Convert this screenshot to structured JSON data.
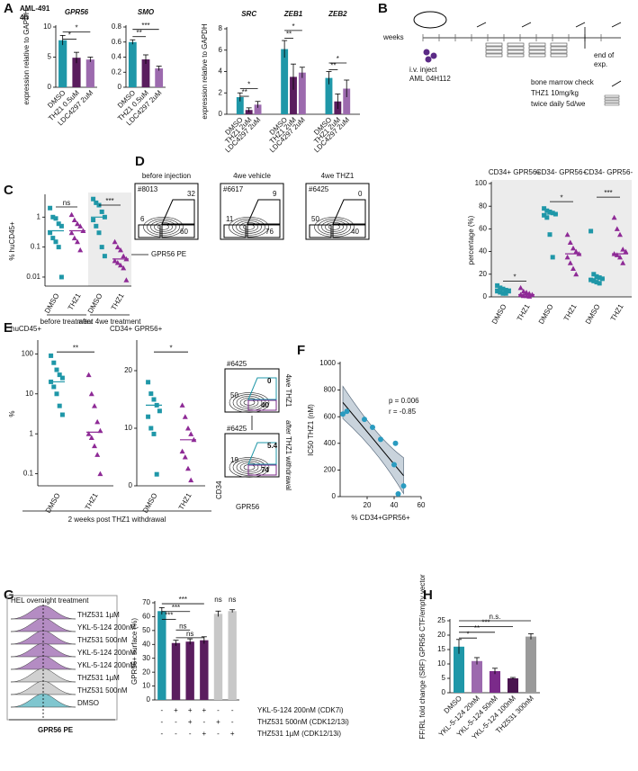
{
  "panel_labels": [
    "A",
    "B",
    "C",
    "D",
    "E",
    "F",
    "G",
    "H"
  ],
  "panel_a_subtitle": [
    "AML-491",
    "4h"
  ],
  "schema": {
    "weeks_label": "weeks",
    "inject": [
      "i.v. inject",
      "AML 04H112"
    ],
    "end": [
      "end of",
      "exp."
    ],
    "legend": [
      "bone marrow check",
      "THZ1 10mg/kg",
      "twice daily 5d/we"
    ]
  },
  "flow_plots_d": {
    "y_axis": "CD34 APC",
    "x_axis": "GPR56 PE",
    "plots": [
      {
        "title": "before injection",
        "id": "#8013",
        "gates": [
          "32",
          "6",
          "60"
        ]
      },
      {
        "title": "4we vehicle",
        "id": "#6617",
        "gates": [
          "9",
          "11",
          "76"
        ]
      },
      {
        "title": "4we THZ1",
        "id": "#6425",
        "gates": [
          "0",
          "50",
          "40"
        ]
      }
    ]
  },
  "flow_plots_e": {
    "y_axis": "CD34",
    "x_axis": "GPR56",
    "plots": [
      {
        "id": "#6425",
        "gates": [
          "0",
          "50",
          "40"
        ],
        "side": "4we THZ1"
      },
      {
        "id": "#6425",
        "gates": [
          "5.4",
          "19",
          "74"
        ],
        "side": "after THZ1 withdrawal"
      }
    ]
  },
  "e_footer": "2 weeks post THZ1 withdrawal",
  "histogram_g": {
    "title": "HEL overnight treatment",
    "x_axis": "GPR56 PE",
    "rows": [
      "THZ531 1µM",
      "YKL-5-124 200nM",
      "THZ531 500nM",
      "YKL-5-124 200nM",
      "YKL-5-124 200nM",
      "THZ531 1µM",
      "THZ531 500nM",
      "DMSO"
    ]
  },
  "chart_data": [
    {
      "type": "bar",
      "title": "GPR56",
      "y_label": "expression relative to GAPDH",
      "categories": [
        "DMSO",
        "THZ1 0.5uM",
        "LDC4297 2uM"
      ],
      "values": [
        7.8,
        4.9,
        4.6
      ],
      "errors": [
        0.8,
        0.9,
        0.4
      ],
      "colors": [
        "#1f97a8",
        "#5a1d5e",
        "#9c6aae"
      ],
      "ylim": [
        0,
        10
      ],
      "yticks": [
        0,
        5,
        10
      ],
      "annotations": [
        "*",
        "*"
      ]
    },
    {
      "type": "bar",
      "title": "SMO",
      "categories": [
        "DMSO",
        "THZ1 0.5uM",
        "LDC4297 2uM"
      ],
      "values": [
        0.6,
        0.37,
        0.25
      ],
      "errors": [
        0.03,
        0.06,
        0.03
      ],
      "colors": [
        "#1f97a8",
        "#5a1d5e",
        "#9c6aae"
      ],
      "ylim": [
        0,
        0.8
      ],
      "yticks": [
        0,
        0.2,
        0.4,
        0.6,
        0.8
      ],
      "annotations": [
        "**",
        "***"
      ]
    },
    {
      "type": "grouped_bar",
      "y_label": "expression relative to GAPDH",
      "categories": [
        "SRC",
        "ZEB1",
        "ZEB2"
      ],
      "series": [
        {
          "name": "DMSO",
          "color": "#1f97a8",
          "values": [
            1.6,
            6.1,
            3.4
          ],
          "errors": [
            0.4,
            0.8,
            0.6
          ]
        },
        {
          "name": "THZ1 2uM",
          "color": "#5a1d5e",
          "values": [
            0.4,
            3.5,
            1.2
          ],
          "errors": [
            0.2,
            1.2,
            0.7
          ]
        },
        {
          "name": "LDC4297 2uM",
          "color": "#9c6aae",
          "values": [
            0.9,
            3.9,
            2.4
          ],
          "errors": [
            0.3,
            0.5,
            0.8
          ]
        }
      ],
      "ylim": [
        0,
        8
      ],
      "yticks": [
        0,
        2,
        4,
        6,
        8
      ],
      "annotations": [
        "*",
        "**",
        "*",
        "**",
        "*",
        "**"
      ]
    },
    {
      "type": "dot",
      "y_label": "% huCD45+",
      "log": true,
      "categories": [
        "DMSO",
        "THZ1",
        "DMSO",
        "THZ1"
      ],
      "groups": [
        "before treatment",
        "after 4we treatment"
      ],
      "points": [
        [
          2,
          1,
          0.9,
          0.6,
          0.5,
          0.3,
          0.2,
          0.15,
          0.1,
          0.01
        ],
        [
          1.2,
          0.8,
          0.6,
          0.5,
          0.35,
          0.3,
          0.2,
          0.15,
          0.08
        ],
        [
          4,
          3,
          2.5,
          1.5,
          1,
          0.8,
          0.5,
          0.3,
          0.1,
          0.05
        ],
        [
          0.15,
          0.1,
          0.08,
          0.05,
          0.04,
          0.035,
          0.03,
          0.025,
          0.02,
          0.008
        ]
      ],
      "medians": [
        0.35,
        0.35,
        1,
        0.04
      ],
      "colors": [
        "#1f97a8",
        "#8e2a96",
        "#1f97a8",
        "#8e2a96"
      ],
      "markers": [
        "square",
        "triangle",
        "square",
        "triangle"
      ],
      "ylim": [
        0.005,
        5
      ],
      "yticks": [
        0.01,
        0.1,
        1
      ],
      "annotations": [
        "ns",
        "***"
      ]
    },
    {
      "type": "dot",
      "y_label": "percentage (%)",
      "categories": [
        "DMSO",
        "THZ1",
        "DMSO",
        "THZ1",
        "DMSO",
        "THZ1"
      ],
      "groups": [
        "CD34+ GPR56+",
        "CD34- GPR56+",
        "CD34- GPR56-"
      ],
      "points": [
        [
          10,
          8,
          7,
          6,
          5,
          5,
          4,
          3,
          3
        ],
        [
          8,
          5,
          4,
          3,
          2,
          2,
          1,
          1,
          0.5
        ],
        [
          78,
          76,
          75,
          74,
          73,
          72,
          70,
          55,
          35
        ],
        [
          55,
          48,
          43,
          40,
          38,
          35,
          30,
          25,
          20
        ],
        [
          58,
          20,
          18,
          17,
          16,
          15,
          14,
          13,
          12
        ],
        [
          70,
          60,
          55,
          42,
          40,
          38,
          37,
          35,
          30
        ]
      ],
      "medians": [
        7,
        2,
        73,
        38,
        16,
        38
      ],
      "colors": [
        "#1f97a8",
        "#8e2a96",
        "#1f97a8",
        "#8e2a96",
        "#1f97a8",
        "#8e2a96"
      ],
      "markers": [
        "square",
        "triangle",
        "square",
        "triangle",
        "square",
        "triangle"
      ],
      "ylim": [
        0,
        100
      ],
      "yticks": [
        0,
        20,
        40,
        60,
        80,
        100
      ],
      "annotations": [
        "*",
        "*",
        "***"
      ]
    },
    {
      "type": "dot",
      "title": "huCD45+",
      "y_label": "%",
      "log": true,
      "categories": [
        "DMSO",
        "THZ1"
      ],
      "points": [
        [
          90,
          60,
          40,
          30,
          25,
          20,
          15,
          10,
          5,
          3
        ],
        [
          30,
          10,
          5,
          2,
          1.2,
          1,
          0.8,
          0.5,
          0.3,
          0.1
        ]
      ],
      "medians": [
        20,
        1.1
      ],
      "colors": [
        "#1f97a8",
        "#8e2a96"
      ],
      "markers": [
        "square",
        "triangle"
      ],
      "ylim": [
        0.05,
        200
      ],
      "yticks": [
        0.1,
        1,
        10,
        100
      ],
      "annotations": [
        "**"
      ]
    },
    {
      "type": "dot",
      "title": "CD34+ GPR56+",
      "categories": [
        "DMSO",
        "THZ1"
      ],
      "points": [
        [
          18,
          16,
          15,
          14,
          13,
          12,
          10,
          9,
          2
        ],
        [
          14,
          12,
          10,
          9,
          8,
          6,
          5,
          3,
          1
        ]
      ],
      "medians": [
        14,
        8
      ],
      "colors": [
        "#1f97a8",
        "#8e2a96"
      ],
      "markers": [
        "square",
        "triangle"
      ],
      "ylim": [
        0,
        25
      ],
      "yticks": [
        0,
        10,
        20
      ],
      "annotations": [
        "*"
      ]
    },
    {
      "type": "scatter",
      "x_label": "% CD34+GPR56+",
      "y_label": "IC50 THZ1 (nM)",
      "x": [
        2,
        5,
        18,
        24,
        30,
        40,
        41,
        43,
        47
      ],
      "y": [
        620,
        640,
        580,
        520,
        430,
        240,
        400,
        20,
        80
      ],
      "color": "#2a9bc0",
      "xlim": [
        0,
        60
      ],
      "ylim": [
        0,
        1000
      ],
      "xticks": [
        20,
        40,
        60
      ],
      "yticks": [
        0,
        200,
        400,
        600,
        800,
        1000
      ],
      "annotations": [
        "p = 0.006",
        "r = -0.85"
      ]
    },
    {
      "type": "bar",
      "y_label": "GPR56+ surface (%)",
      "categories": [
        null,
        null,
        null,
        null,
        null,
        null
      ],
      "values": [
        64,
        41,
        42,
        43,
        62,
        64
      ],
      "errors": [
        2.5,
        2,
        2,
        2.5,
        2,
        1
      ],
      "colors": [
        "#1f97a8",
        "#5a1d5e",
        "#5a1d5e",
        "#5a1d5e",
        "#c8c8c8",
        "#c8c8c8"
      ],
      "ylim": [
        0,
        70
      ],
      "yticks": [
        0,
        10,
        20,
        30,
        40,
        50,
        60,
        70
      ],
      "annotations": [
        "***",
        "***",
        "***",
        "ns",
        "ns",
        "ns",
        "ns"
      ],
      "conditions": [
        {
          "label": "YKL-5-124 200nM (CDK7i)",
          "marks": [
            "-",
            "+",
            "+",
            "+",
            "-",
            "-"
          ]
        },
        {
          "label": "THZ531 500nM (CDK12/13i)",
          "marks": [
            "-",
            "-",
            "+",
            "-",
            "+",
            "-"
          ]
        },
        {
          "label": "THZ531 1µM (CDK12/13i)",
          "marks": [
            "-",
            "-",
            "-",
            "+",
            "-",
            "+"
          ]
        }
      ]
    },
    {
      "type": "bar",
      "y_label": "FF/RL fold change (SRF) GPR56 CTF/empty vector",
      "categories": [
        "DMSO",
        "YKL-5-124 20nM",
        "YKL-5-124 50nM",
        "YKL-5-124 100nM",
        "THZ531 300nM"
      ],
      "values": [
        16,
        11,
        7.5,
        5,
        19.5
      ],
      "errors": [
        2.5,
        1.2,
        1,
        0.3,
        1
      ],
      "colors": [
        "#1f97a8",
        "#9c6aae",
        "#7b2a8a",
        "#4a1550",
        "#9a9a9a"
      ],
      "ylim": [
        0,
        25
      ],
      "yticks": [
        0,
        5,
        10,
        15,
        20,
        25
      ],
      "annotations": [
        "*",
        "**",
        "***",
        "n.s."
      ]
    }
  ]
}
